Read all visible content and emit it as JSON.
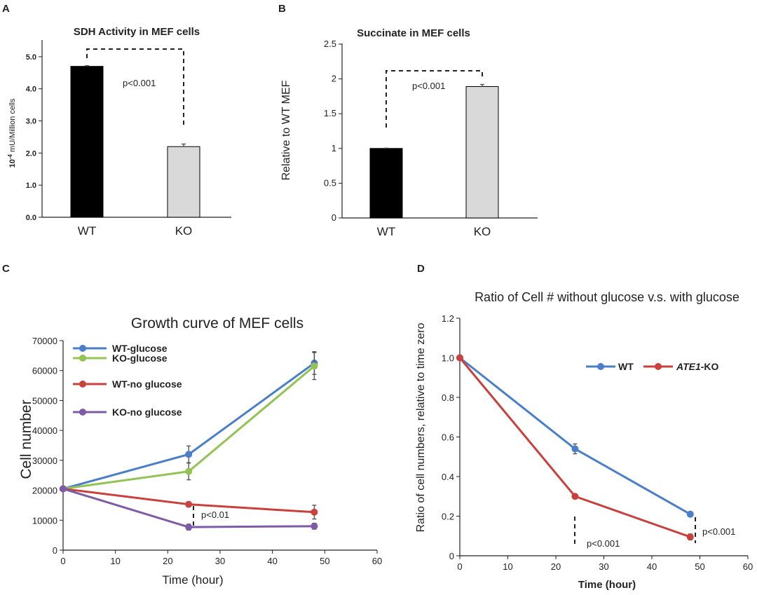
{
  "colors": {
    "wt_bar": "#000000",
    "ko_bar": "#d9d9d9",
    "wt_glucose": "#4a7ec8",
    "ko_glucose": "#93c353",
    "wt_no_glucose": "#c8413d",
    "ko_no_glucose": "#7e5ba6",
    "wt_line_d": "#4a7ec8",
    "ko_line_d": "#c8413d"
  },
  "chart_data": [
    {
      "panel": "A",
      "type": "bar",
      "title": "SDH Activity in MEF cells",
      "ylabel_prefix": "10",
      "ylabel_exp": "-4",
      "ylabel_rest": " mU/Million cells",
      "xlabel": "",
      "categories": [
        "WT",
        "KO"
      ],
      "values": [
        4.7,
        2.2
      ],
      "errors": [
        0.02,
        0.08
      ],
      "ylim": [
        0,
        5.5
      ],
      "yticks": [
        0.0,
        1.0,
        2.0,
        3.0,
        4.0,
        5.0
      ],
      "ytick_labels": [
        "0.0",
        "1.0",
        "2.0",
        "3.0",
        "4.0",
        "5.0"
      ],
      "annotation": "p<0.001"
    },
    {
      "panel": "B",
      "type": "bar",
      "title": "Succinate in MEF cells",
      "ylabel": "Relative to WT MEF",
      "xlabel": "",
      "categories": [
        "WT",
        "KO"
      ],
      "values": [
        1.0,
        1.89
      ],
      "errors": [
        0.005,
        0.03
      ],
      "ylim": [
        0,
        2.5
      ],
      "yticks": [
        0,
        0.5,
        1,
        1.5,
        2,
        2.5
      ],
      "ytick_labels": [
        "0",
        "0.5",
        "1",
        "1.5",
        "2",
        "2.5"
      ],
      "annotation": "p<0.001"
    },
    {
      "panel": "C",
      "type": "line",
      "title": "Growth curve of MEF cells",
      "xlabel": "Time (hour)",
      "ylabel": "Cell number",
      "x": [
        0,
        24,
        48
      ],
      "xlim": [
        0,
        60
      ],
      "ylim": [
        0,
        70000
      ],
      "xticks": [
        0,
        10,
        20,
        30,
        40,
        50,
        60
      ],
      "yticks": [
        0,
        10000,
        20000,
        30000,
        40000,
        50000,
        60000,
        70000
      ],
      "series": [
        {
          "name": "WT-glucose",
          "values": [
            20500,
            32000,
            62500
          ],
          "errors": [
            0,
            2800,
            3800
          ]
        },
        {
          "name": "KO-glucose",
          "values": [
            20500,
            26300,
            61500
          ],
          "errors": [
            0,
            2800,
            4500
          ]
        },
        {
          "name": "WT-no glucose",
          "values": [
            20500,
            15300,
            12700
          ],
          "errors": [
            0,
            300,
            2300
          ]
        },
        {
          "name": "KO-no glucose",
          "values": [
            20500,
            7700,
            8000
          ],
          "errors": [
            0,
            1000,
            1000
          ]
        }
      ],
      "annotation": "p<0.01"
    },
    {
      "panel": "D",
      "type": "line",
      "title": "Ratio of Cell # without glucose v.s. with glucose",
      "xlabel": "Time (hour)",
      "ylabel": "Ratio of cell numbers, relative to time zero",
      "x": [
        0,
        24,
        48
      ],
      "xlim": [
        0,
        60
      ],
      "ylim": [
        0,
        1.2
      ],
      "xticks": [
        0,
        10,
        20,
        30,
        40,
        50,
        60
      ],
      "yticks": [
        0,
        0.2,
        0.4,
        0.6,
        0.8,
        1.0,
        1.2
      ],
      "ytick_labels": [
        "0",
        "0.2",
        "0.4",
        "0.6",
        "0.8",
        "1.0",
        "1.2"
      ],
      "series": [
        {
          "name": "WT",
          "name_italic": "",
          "name_bold": "WT",
          "values": [
            1.0,
            0.54,
            0.21
          ],
          "errors": [
            0,
            0.025,
            0.012
          ]
        },
        {
          "name": "ATE1-KO",
          "name_italic": "ATE1",
          "name_bold": "-KO",
          "values": [
            1.0,
            0.3,
            0.095
          ],
          "errors": [
            0,
            0.01,
            0.015
          ]
        }
      ],
      "annotations": [
        "p<0.001",
        "p<0.001"
      ]
    }
  ]
}
